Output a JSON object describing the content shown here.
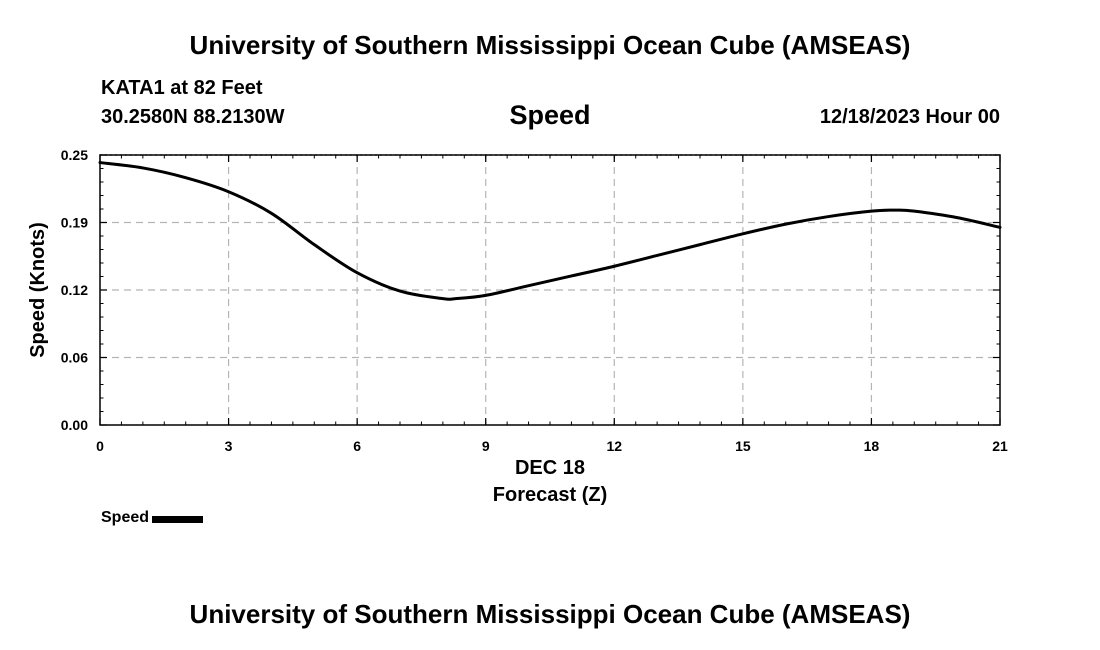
{
  "header": {
    "title": "University of Southern Mississippi Ocean Cube (AMSEAS)",
    "station": "KATA1 at 82 Feet",
    "coords": "30.2580N  88.2130W",
    "datetime": "12/18/2023 Hour 00"
  },
  "footer": {
    "title": "University of Southern Mississippi Ocean Cube (AMSEAS)"
  },
  "legend": {
    "label": "Speed"
  },
  "chart_data": {
    "type": "line",
    "title": "Speed",
    "xlabel": "Forecast (Z)",
    "xlabel_date": "DEC 18",
    "ylabel": "Speed (Knots)",
    "xlim": [
      0,
      21
    ],
    "ylim": [
      0,
      0.25
    ],
    "xticks": [
      0,
      3,
      6,
      9,
      12,
      15,
      18,
      21
    ],
    "xtick_labels": [
      "0",
      "3",
      "6",
      "9",
      "12",
      "15",
      "18",
      "21"
    ],
    "yticks": [
      0,
      0.0625,
      0.125,
      0.1875,
      0.25
    ],
    "ytick_labels": [
      "0.00",
      "0.06",
      "0.12",
      "0.19",
      "0.25"
    ],
    "grid": true,
    "line_color": "#000000",
    "series": [
      {
        "name": "Speed",
        "x": [
          0,
          1,
          2,
          3,
          4,
          5,
          6,
          7,
          8,
          8.3,
          9,
          10,
          11,
          12,
          13,
          14,
          15,
          16,
          17,
          18,
          18.6,
          19,
          20,
          21
        ],
        "y": [
          0.243,
          0.238,
          0.229,
          0.216,
          0.196,
          0.167,
          0.141,
          0.124,
          0.117,
          0.117,
          0.12,
          0.129,
          0.138,
          0.147,
          0.157,
          0.167,
          0.177,
          0.186,
          0.193,
          0.198,
          0.199,
          0.198,
          0.192,
          0.183
        ]
      }
    ]
  }
}
